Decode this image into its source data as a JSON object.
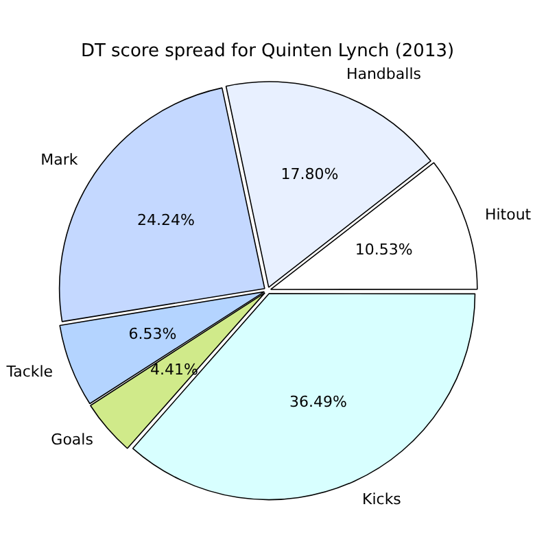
{
  "chart_data": {
    "type": "pie",
    "title": "DT score spread for Quinten Lynch (2013)",
    "categories": [
      "Kicks",
      "Goals",
      "Tackle",
      "Mark",
      "Handballs",
      "Hitout"
    ],
    "values": [
      36.49,
      4.41,
      6.53,
      24.24,
      17.8,
      10.53
    ],
    "colors": [
      "#d8ffff",
      "#d0ea8a",
      "#b4d4ff",
      "#c4d8ff",
      "#e8f0ff",
      "#ffffff"
    ],
    "value_labels": [
      "36.49%",
      "4.41%",
      "6.53%",
      "24.24%",
      "17.80%",
      "10.53%"
    ],
    "legend": false
  }
}
